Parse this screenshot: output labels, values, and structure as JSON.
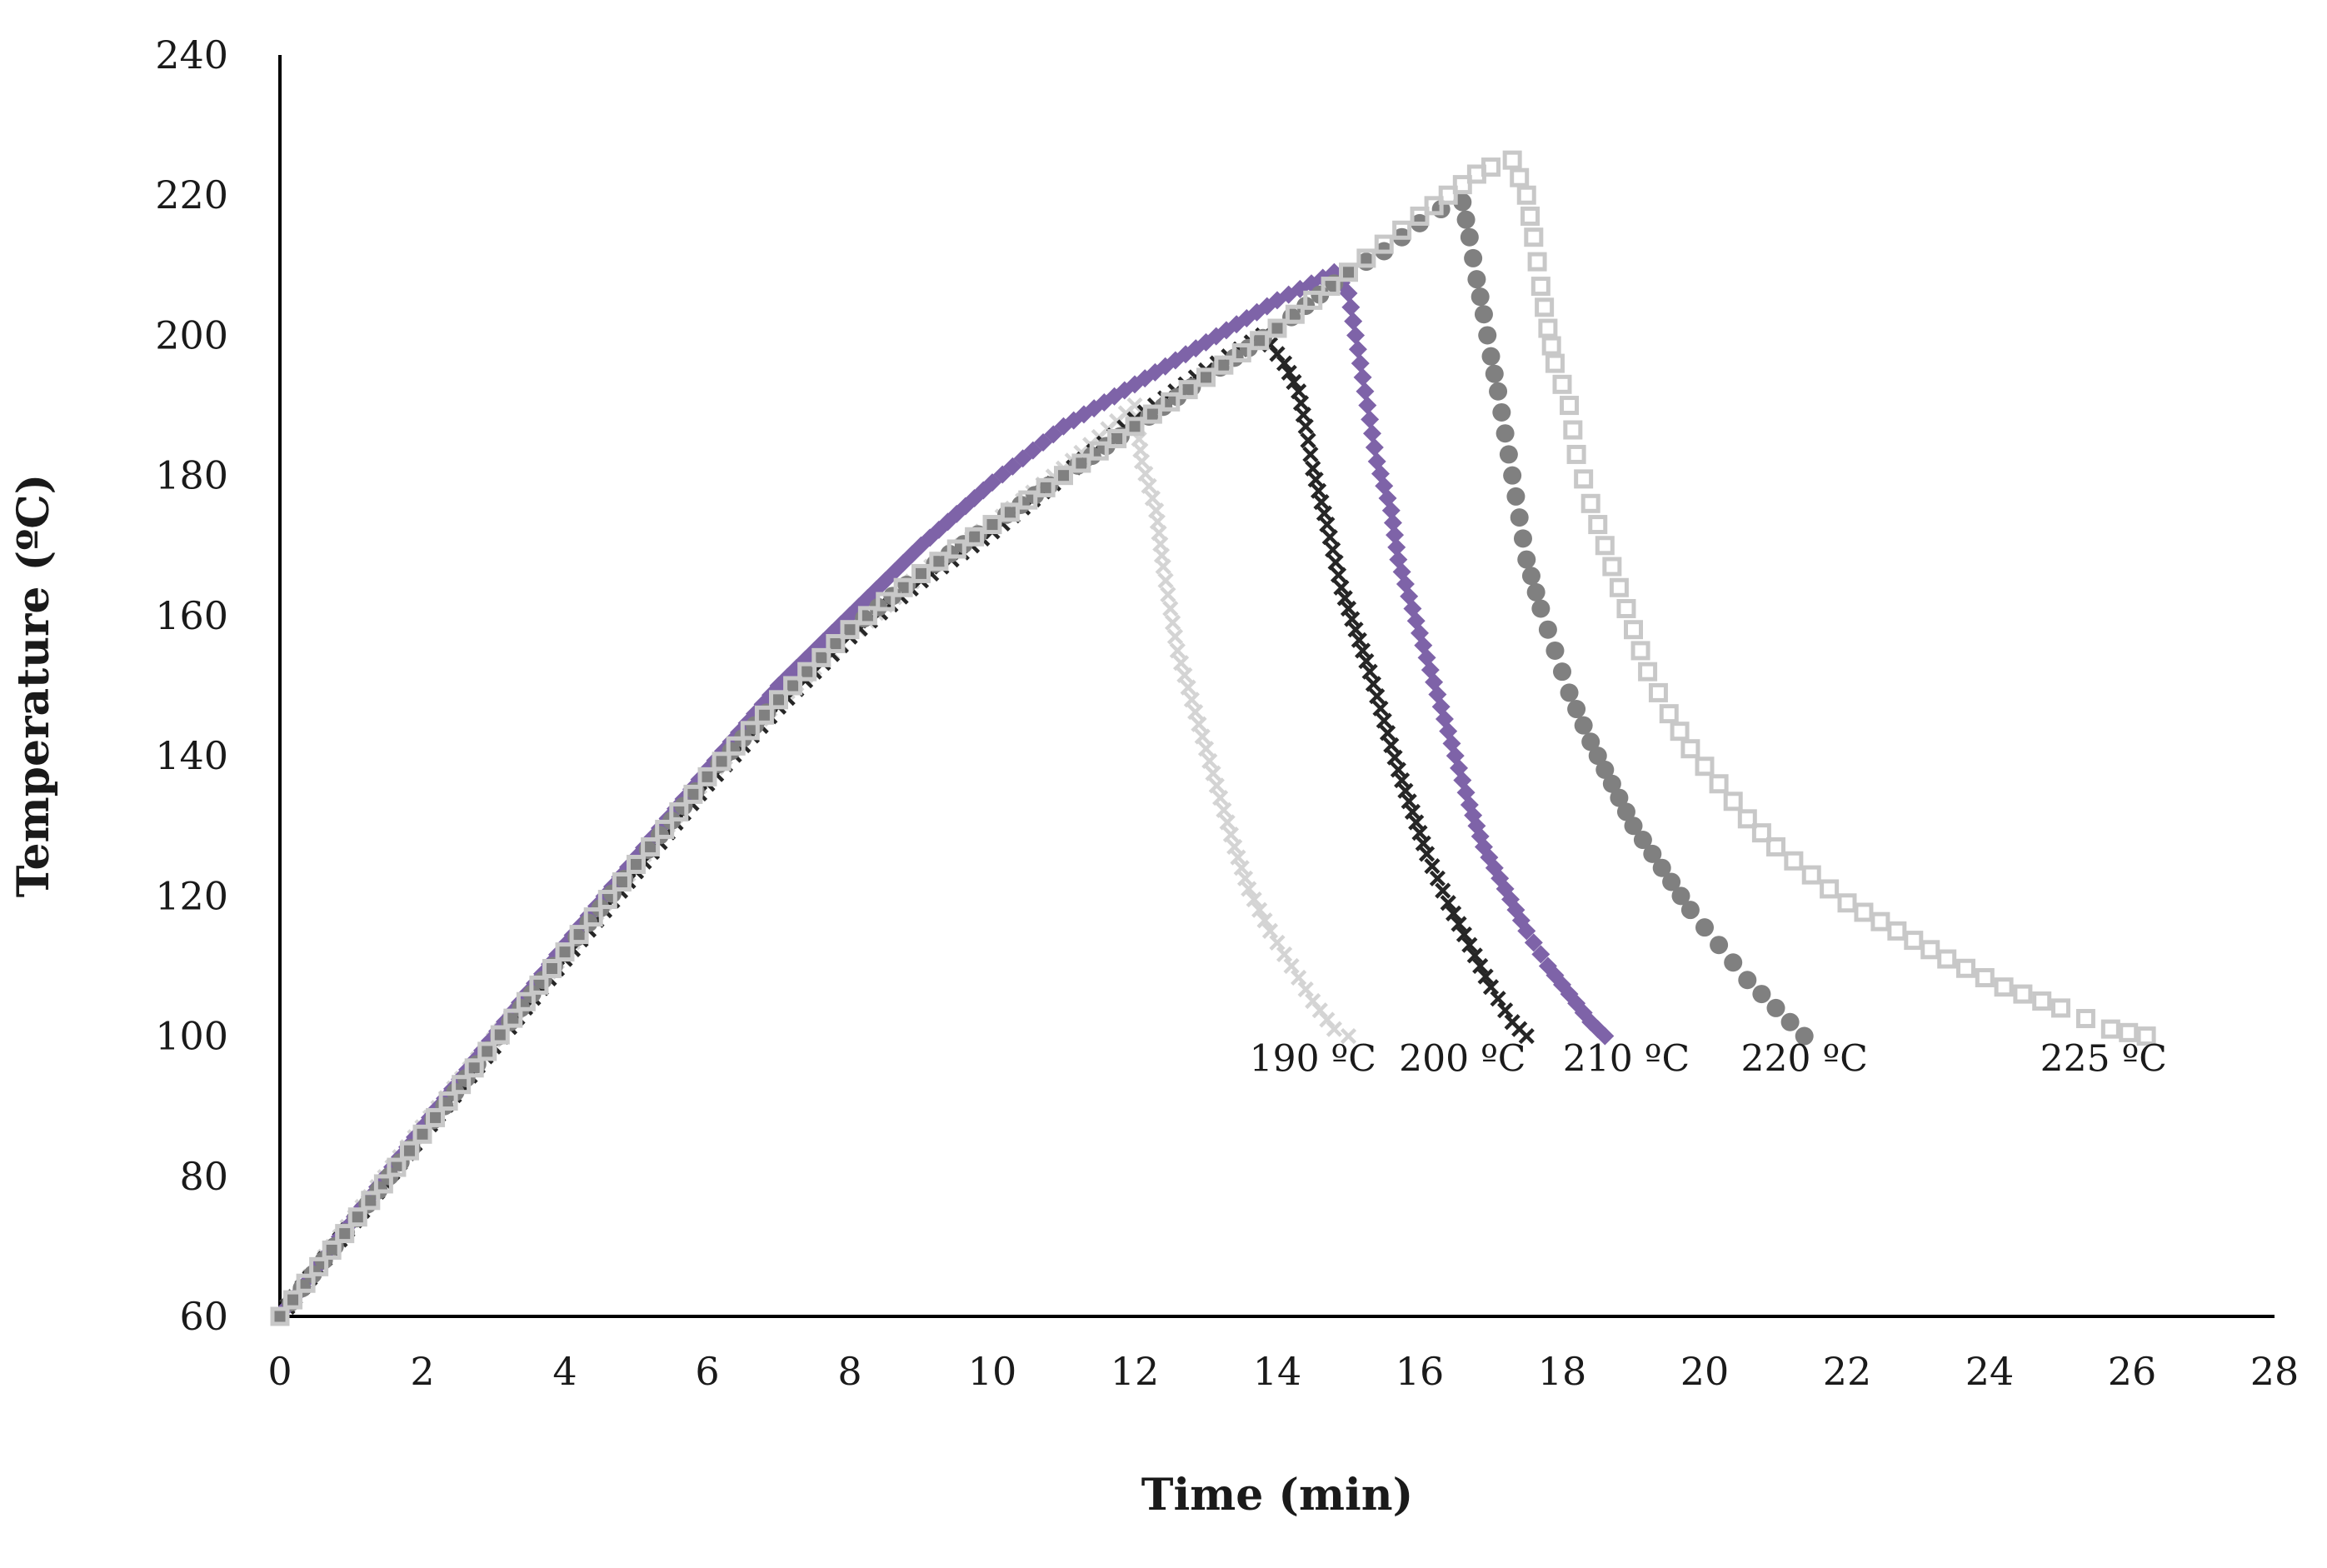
{
  "chart_data": {
    "type": "scatter",
    "title": "",
    "xlabel": "Time (min)",
    "ylabel": "Temperature (ºC)",
    "xlim": [
      0,
      28
    ],
    "ylim": [
      60,
      240
    ],
    "xticks": [
      0,
      2,
      4,
      6,
      8,
      10,
      12,
      14,
      16,
      18,
      20,
      22,
      24,
      26,
      28
    ],
    "yticks": [
      60,
      80,
      100,
      120,
      140,
      160,
      180,
      200,
      220,
      240
    ],
    "grid": false,
    "legend": "none",
    "series": [
      {
        "name": "190 ºC",
        "label_text": "190 ºC",
        "label_at": [
          14.5,
          95
        ],
        "marker": "x",
        "color": "#d4d4d4",
        "points": [
          [
            0,
            60
          ],
          [
            2,
            87
          ],
          [
            4,
            112
          ],
          [
            6,
            137
          ],
          [
            7,
            148
          ],
          [
            8,
            157
          ],
          [
            9,
            166
          ],
          [
            10,
            173
          ],
          [
            11,
            181
          ],
          [
            12,
            190
          ],
          [
            12.1,
            182
          ],
          [
            12.3,
            175
          ],
          [
            12.4,
            167
          ],
          [
            12.5,
            161
          ],
          [
            12.6,
            155
          ],
          [
            12.8,
            148
          ],
          [
            13.0,
            141
          ],
          [
            13.2,
            134
          ],
          [
            13.4,
            127
          ],
          [
            13.6,
            121
          ],
          [
            13.9,
            115
          ],
          [
            14.2,
            110
          ],
          [
            14.5,
            105
          ],
          [
            14.8,
            101
          ],
          [
            15.0,
            100
          ]
        ]
      },
      {
        "name": "200 ºC",
        "label_text": "200 ºC",
        "label_at": [
          16.6,
          95
        ],
        "marker": "x",
        "color": "#262626",
        "points": [
          [
            0,
            60
          ],
          [
            2,
            86
          ],
          [
            4,
            111
          ],
          [
            6,
            136
          ],
          [
            7,
            147
          ],
          [
            8,
            157
          ],
          [
            9,
            165
          ],
          [
            10,
            172
          ],
          [
            11,
            180
          ],
          [
            12,
            188
          ],
          [
            13,
            195
          ],
          [
            13.8,
            200
          ],
          [
            14.1,
            196
          ],
          [
            14.3,
            192
          ],
          [
            14.4,
            187
          ],
          [
            14.5,
            181
          ],
          [
            14.7,
            173
          ],
          [
            14.9,
            164
          ],
          [
            15.1,
            158
          ],
          [
            15.3,
            152
          ],
          [
            15.5,
            145
          ],
          [
            15.7,
            138
          ],
          [
            15.9,
            132
          ],
          [
            16.1,
            126
          ],
          [
            16.4,
            119
          ],
          [
            16.7,
            113
          ],
          [
            17.0,
            107
          ],
          [
            17.3,
            102
          ],
          [
            17.5,
            100
          ]
        ]
      },
      {
        "name": "210 ºC",
        "label_text": "210 ºC",
        "label_at": [
          18.9,
          95
        ],
        "marker": "diamond",
        "color": "#7e63a8",
        "points": [
          [
            0,
            60
          ],
          [
            2,
            87
          ],
          [
            4,
            113
          ],
          [
            6,
            138
          ],
          [
            7,
            150
          ],
          [
            8,
            160
          ],
          [
            9,
            170
          ],
          [
            10,
            179
          ],
          [
            11,
            187
          ],
          [
            12,
            193
          ],
          [
            13,
            199
          ],
          [
            14,
            205
          ],
          [
            14.8,
            209
          ],
          [
            15.0,
            206
          ],
          [
            15.1,
            200
          ],
          [
            15.2,
            194
          ],
          [
            15.3,
            188
          ],
          [
            15.4,
            182
          ],
          [
            15.6,
            175
          ],
          [
            15.7,
            168
          ],
          [
            15.9,
            161
          ],
          [
            16.1,
            154
          ],
          [
            16.3,
            147
          ],
          [
            16.5,
            140
          ],
          [
            16.7,
            133
          ],
          [
            16.9,
            127
          ],
          [
            17.2,
            121
          ],
          [
            17.5,
            115
          ],
          [
            17.8,
            110
          ],
          [
            18.1,
            106
          ],
          [
            18.4,
            102
          ],
          [
            18.6,
            100
          ]
        ]
      },
      {
        "name": "220 ºC",
        "label_text": "220 ºC",
        "label_at": [
          21.4,
          95
        ],
        "marker": "circle",
        "color": "#808080",
        "points": [
          [
            0,
            60
          ],
          [
            2,
            86
          ],
          [
            4,
            112
          ],
          [
            6,
            137
          ],
          [
            7,
            148
          ],
          [
            8,
            158
          ],
          [
            9,
            166
          ],
          [
            10,
            173
          ],
          [
            11,
            180
          ],
          [
            12,
            187
          ],
          [
            13,
            194
          ],
          [
            14,
            201
          ],
          [
            15,
            209
          ],
          [
            15.5,
            212
          ],
          [
            16,
            216
          ],
          [
            16.3,
            218
          ],
          [
            16.6,
            219
          ],
          [
            16.7,
            214
          ],
          [
            16.8,
            208
          ],
          [
            16.9,
            203
          ],
          [
            17.0,
            197
          ],
          [
            17.1,
            192
          ],
          [
            17.2,
            186
          ],
          [
            17.3,
            180
          ],
          [
            17.4,
            174
          ],
          [
            17.5,
            168
          ],
          [
            17.7,
            161
          ],
          [
            17.9,
            155
          ],
          [
            18.1,
            149
          ],
          [
            18.4,
            142
          ],
          [
            18.7,
            136
          ],
          [
            19.0,
            130
          ],
          [
            19.4,
            124
          ],
          [
            19.8,
            118
          ],
          [
            20.2,
            113
          ],
          [
            20.6,
            108
          ],
          [
            21.0,
            104
          ],
          [
            21.4,
            100
          ]
        ]
      },
      {
        "name": "225 ºC",
        "label_text": "225 ºC",
        "label_at": [
          25.6,
          95
        ],
        "marker": "square",
        "color": "#c8c8c8",
        "points": [
          [
            0,
            60
          ],
          [
            2,
            86
          ],
          [
            4,
            112
          ],
          [
            6,
            137
          ],
          [
            7,
            148
          ],
          [
            8,
            158
          ],
          [
            9,
            166
          ],
          [
            10,
            173
          ],
          [
            11,
            180
          ],
          [
            12,
            187
          ],
          [
            13,
            194
          ],
          [
            14,
            201
          ],
          [
            15,
            209
          ],
          [
            15.5,
            213
          ],
          [
            16,
            217
          ],
          [
            16.4,
            220
          ],
          [
            16.8,
            223
          ],
          [
            17.0,
            224
          ],
          [
            17.3,
            225
          ],
          [
            17.5,
            220
          ],
          [
            17.6,
            214
          ],
          [
            17.7,
            207
          ],
          [
            17.8,
            201
          ],
          [
            17.9,
            196
          ],
          [
            18.1,
            190
          ],
          [
            18.2,
            183
          ],
          [
            18.4,
            176
          ],
          [
            18.6,
            170
          ],
          [
            18.8,
            164
          ],
          [
            19.0,
            158
          ],
          [
            19.2,
            152
          ],
          [
            19.5,
            146
          ],
          [
            19.8,
            141
          ],
          [
            20.2,
            136
          ],
          [
            20.6,
            131
          ],
          [
            21.0,
            127
          ],
          [
            21.5,
            123
          ],
          [
            22.0,
            119
          ],
          [
            22.7,
            115
          ],
          [
            23.4,
            111
          ],
          [
            24.2,
            107
          ],
          [
            25.0,
            104
          ],
          [
            25.7,
            101
          ],
          [
            26.2,
            100
          ]
        ]
      }
    ]
  }
}
